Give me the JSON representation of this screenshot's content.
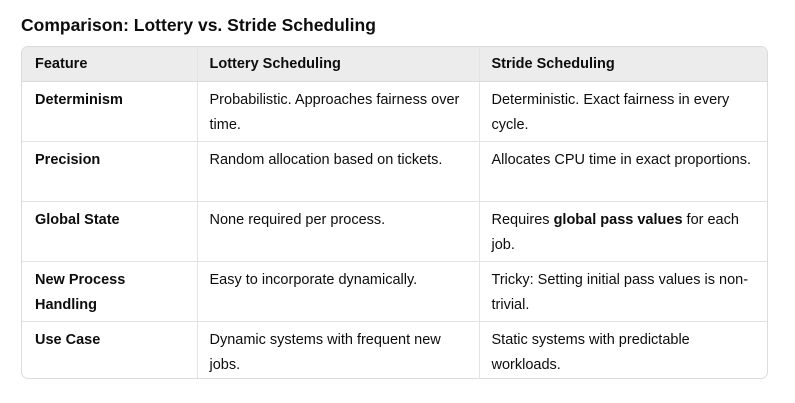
{
  "title": "Comparison: Lottery vs. Stride Scheduling",
  "table": {
    "headers": [
      "Feature",
      "Lottery Scheduling",
      "Stride Scheduling"
    ],
    "rows": [
      {
        "feature": "Determinism",
        "lottery": "Probabilistic. Approaches fairness over time.",
        "stride": "Deterministic. Exact fairness in every cycle."
      },
      {
        "feature": "Precision",
        "lottery": "Random allocation based on tickets.",
        "stride": "Allocates CPU time in exact proportions."
      },
      {
        "feature": "Global State",
        "lottery": "None required per process.",
        "stride_pre": "Requires ",
        "stride_bold": "global pass values",
        "stride_post": " for each job."
      },
      {
        "feature": "New Process Handling",
        "lottery": "Easy to incorporate dynamically.",
        "stride": "Tricky: Setting initial pass values is non-trivial."
      },
      {
        "feature": "Use Case",
        "lottery": "Dynamic systems with frequent new jobs.",
        "stride": "Static systems with predictable workloads."
      }
    ]
  },
  "colors": {
    "header_bg": "#ececec",
    "border": "#dcdcdc",
    "text": "#0d0d0d"
  }
}
